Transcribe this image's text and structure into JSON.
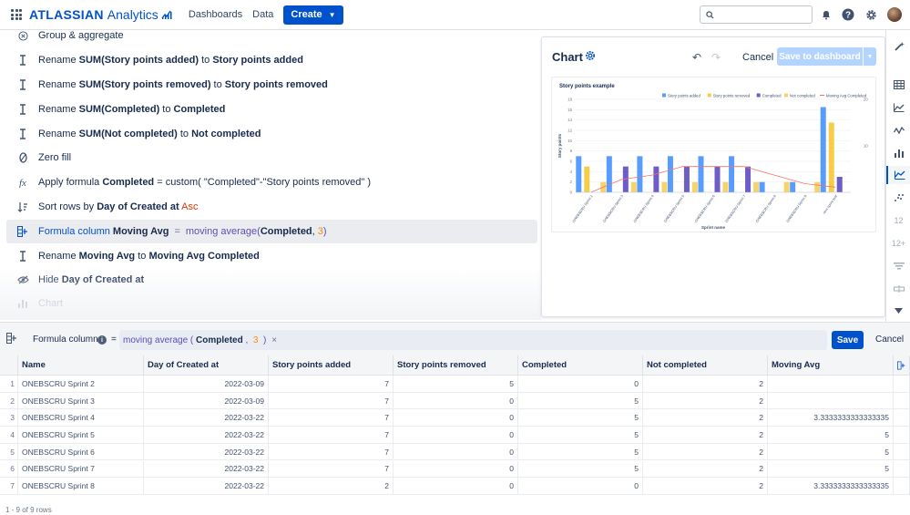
{
  "topnav": {
    "brand_bold": "ATLASSIAN",
    "brand_light": "Analytics",
    "links": [
      "Dashboards",
      "Data"
    ],
    "create_label": "Create",
    "search_placeholder": ""
  },
  "steps": [
    {
      "icon": "aggregate-icon",
      "parts": [
        {
          "t": "Group & aggregate"
        }
      ]
    },
    {
      "icon": "rename-icon",
      "parts": [
        {
          "t": "Rename "
        },
        {
          "b": "SUM(Story points added)"
        },
        {
          "t": " to "
        },
        {
          "b": "Story points added"
        }
      ]
    },
    {
      "icon": "rename-icon",
      "parts": [
        {
          "t": "Rename "
        },
        {
          "b": "SUM(Story points removed)"
        },
        {
          "t": " to "
        },
        {
          "b": "Story points removed"
        }
      ]
    },
    {
      "icon": "rename-icon",
      "parts": [
        {
          "t": "Rename "
        },
        {
          "b": "SUM(Completed)"
        },
        {
          "t": " to "
        },
        {
          "b": "Completed"
        }
      ]
    },
    {
      "icon": "rename-icon",
      "parts": [
        {
          "t": "Rename "
        },
        {
          "b": "SUM(Not completed)"
        },
        {
          "t": " to "
        },
        {
          "b": "Not completed"
        }
      ]
    },
    {
      "icon": "zero-fill-icon",
      "parts": [
        {
          "t": "Zero fill"
        }
      ]
    },
    {
      "icon": "formula-icon",
      "parts": [
        {
          "t": "Apply formula "
        },
        {
          "b": "Completed"
        },
        {
          "t": " = custom( \"Completed\"-\"Story points removed\" )"
        }
      ]
    },
    {
      "icon": "sort-icon",
      "parts": [
        {
          "t": "Sort rows by "
        },
        {
          "b": "Day of Created at"
        },
        {
          "t": " "
        },
        {
          "asc": "Asc"
        }
      ]
    },
    {
      "icon": "formula-column-icon",
      "active": true,
      "parts": [
        {
          "kw": "Formula column"
        },
        {
          "t": "  "
        },
        {
          "b": "Moving Avg"
        },
        {
          "op": "="
        },
        {
          "fn": "moving average("
        },
        {
          "b": "Completed"
        },
        {
          "t": ", "
        },
        {
          "num": "3"
        },
        {
          "fn": ")"
        }
      ]
    },
    {
      "icon": "rename-icon",
      "parts": [
        {
          "t": "Rename "
        },
        {
          "b": "Moving Avg"
        },
        {
          "t": " to "
        },
        {
          "b": "Moving Avg Completed"
        }
      ]
    },
    {
      "icon": "hide-icon",
      "parts": [
        {
          "t": "Hide "
        },
        {
          "b": "Day of Created at"
        }
      ]
    },
    {
      "icon": "chart-icon",
      "muted": true,
      "parts": [
        {
          "t": "Chart"
        }
      ]
    }
  ],
  "chart_panel": {
    "title": "Chart",
    "cancel_label": "Cancel",
    "save_label": "Save to dashboard"
  },
  "chart_data": {
    "type": "bar",
    "title": "Story points example",
    "xlabel": "Sprint name",
    "ylabel": "Story points",
    "ylim": [
      0,
      18
    ],
    "y2lim": [
      0,
      20
    ],
    "yticks": [
      0,
      2,
      4,
      6,
      8,
      10,
      12,
      14,
      16,
      18
    ],
    "y2ticks": [
      10,
      20
    ],
    "categories": [
      "ONEBSCRU Sprint 2",
      "ONEBSCRU Sprint 3",
      "ONEBSCRU Sprint 4",
      "ONEBSCRU Sprint 5",
      "ONEBSCRU Sprint 6",
      "ONEBSCRU Sprint 7",
      "ONEBSCRU Sprint 8",
      "ONEBSCRU Sprint 9",
      "new sprint test"
    ],
    "series": [
      {
        "name": "Story points added",
        "color": "#579dff",
        "values": [
          7,
          7,
          7,
          7,
          7,
          7,
          2,
          2,
          16.5
        ]
      },
      {
        "name": "Story points removed",
        "color": "#f5cd47",
        "values": [
          5,
          0,
          0,
          0,
          0,
          0,
          0,
          0,
          13.5
        ]
      },
      {
        "name": "Completed",
        "color": "#6e5dc6",
        "values": [
          0,
          5,
          5,
          5,
          5,
          5,
          0,
          0,
          3
        ]
      },
      {
        "name": "Not completed",
        "color": "#f8d26a",
        "values": [
          2,
          2,
          2,
          2,
          2,
          2,
          2,
          2,
          0
        ]
      }
    ],
    "line_series": {
      "name": "Moving Avg Completed",
      "color": "#f87168",
      "values": [
        0,
        2.5,
        3.33,
        5,
        5,
        5,
        3.33,
        1.67,
        1
      ]
    },
    "legend": "top-right"
  },
  "formula_bar": {
    "label": "Formula column",
    "info": "i",
    "eq": "=",
    "fn_open": "moving average ( ",
    "arg": "Completed",
    "sep": " ,  ",
    "num": "3",
    "fn_close": "  )",
    "clear": "×",
    "save_label": "Save",
    "cancel_label": "Cancel"
  },
  "table": {
    "columns": [
      "Name",
      "Day of Created at",
      "Story points added",
      "Story points removed",
      "Completed",
      "Not completed",
      "Moving Avg"
    ],
    "rows": [
      [
        "1",
        "ONEBSCRU Sprint 2",
        "2022-03-09",
        "7",
        "5",
        "0",
        "2",
        ""
      ],
      [
        "2",
        "ONEBSCRU Sprint 3",
        "2022-03-09",
        "7",
        "0",
        "5",
        "2",
        ""
      ],
      [
        "3",
        "ONEBSCRU Sprint 4",
        "2022-03-22",
        "7",
        "0",
        "5",
        "2",
        "3.3333333333333335"
      ],
      [
        "4",
        "ONEBSCRU Sprint 5",
        "2022-03-22",
        "7",
        "0",
        "5",
        "2",
        "5"
      ],
      [
        "5",
        "ONEBSCRU Sprint 6",
        "2022-03-22",
        "7",
        "0",
        "5",
        "2",
        "5"
      ],
      [
        "6",
        "ONEBSCRU Sprint 7",
        "2022-03-22",
        "7",
        "0",
        "5",
        "2",
        "5"
      ],
      [
        "7",
        "ONEBSCRU Sprint 8",
        "2022-03-22",
        "2",
        "0",
        "0",
        "2",
        "3.3333333333333335"
      ]
    ],
    "footer": "1 - 9 of 9 rows"
  },
  "rail": {
    "labels": [
      "12",
      "12+"
    ]
  }
}
